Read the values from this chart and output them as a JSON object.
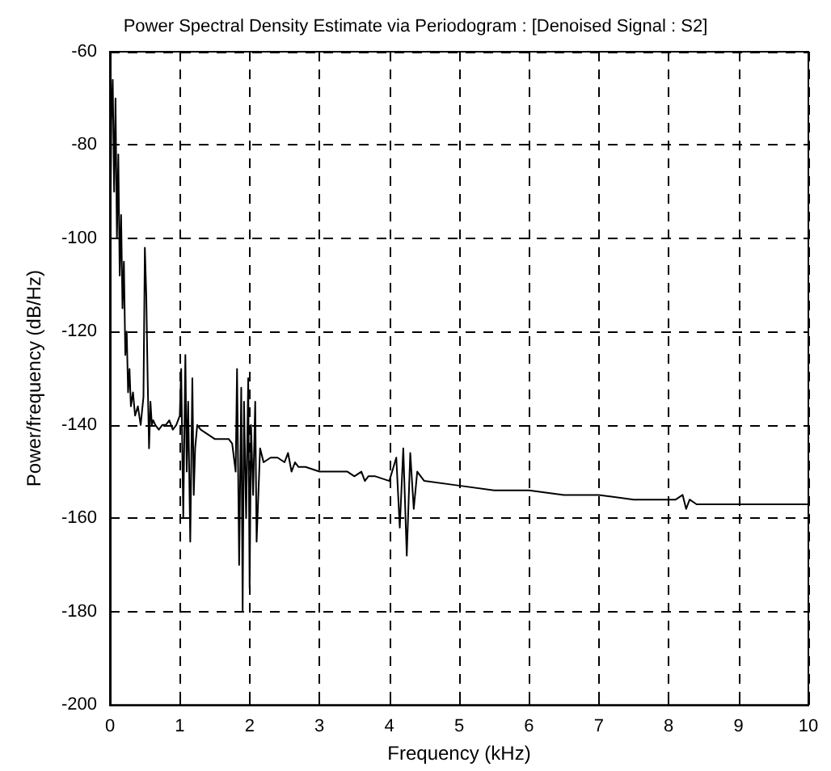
{
  "chart_data": {
    "type": "line",
    "title": "Power Spectral Density Estimate via Periodogram : [Denoised Signal : S2]",
    "xlabel": "Frequency (kHz)",
    "ylabel": "Power/frequency (dB/Hz)",
    "xlim": [
      0,
      10
    ],
    "xticks": [
      0,
      1,
      2,
      3,
      4,
      5,
      6,
      7,
      8,
      9,
      10
    ],
    "ylim": [
      -200,
      -60
    ],
    "yticks": [
      -200,
      -180,
      -160,
      -140,
      -120,
      -100,
      -80,
      -60
    ],
    "grid": true,
    "marker": "none",
    "line_style": "solid",
    "series": [
      {
        "color": "#000000",
        "x": [
          0,
          0.02,
          0.04,
          0.06,
          0.08,
          0.1,
          0.12,
          0.14,
          0.16,
          0.18,
          0.2,
          0.22,
          0.24,
          0.26,
          0.28,
          0.3,
          0.33,
          0.36,
          0.4,
          0.44,
          0.48,
          0.5,
          0.52,
          0.54,
          0.56,
          0.58,
          0.6,
          0.62,
          0.65,
          0.7,
          0.75,
          0.8,
          0.85,
          0.9,
          0.95,
          1.0,
          1.02,
          1.05,
          1.08,
          1.1,
          1.12,
          1.15,
          1.18,
          1.2,
          1.22,
          1.25,
          1.3,
          1.4,
          1.5,
          1.6,
          1.7,
          1.75,
          1.8,
          1.82,
          1.85,
          1.88,
          1.9,
          1.92,
          1.95,
          1.98,
          2.0,
          2.02,
          2.05,
          2.08,
          2.1,
          2.15,
          2.2,
          2.3,
          2.4,
          2.5,
          2.55,
          2.6,
          2.65,
          2.7,
          2.8,
          3.0,
          3.2,
          3.4,
          3.5,
          3.6,
          3.65,
          3.7,
          3.8,
          4.0,
          4.1,
          4.15,
          4.2,
          4.25,
          4.3,
          4.35,
          4.4,
          4.5,
          5.0,
          5.5,
          6.0,
          6.5,
          7.0,
          7.5,
          8.0,
          8.1,
          8.2,
          8.25,
          8.3,
          8.4,
          8.5,
          9.0,
          9.5,
          10.0
        ],
        "values": [
          -110,
          -75,
          -66,
          -90,
          -70,
          -100,
          -82,
          -108,
          -95,
          -115,
          -105,
          -125,
          -120,
          -133,
          -128,
          -136,
          -133,
          -138,
          -136,
          -140,
          -134,
          -102,
          -112,
          -130,
          -145,
          -135,
          -140,
          -139,
          -140,
          -141,
          -140,
          -140,
          -139,
          -141,
          -140,
          -138,
          -128,
          -160,
          -125,
          -150,
          -135,
          -165,
          -130,
          -155,
          -145,
          -140,
          -141,
          -142,
          -143,
          -143,
          -143,
          -144,
          -150,
          -128,
          -170,
          -132,
          -180,
          -135,
          -160,
          -130,
          -175,
          -140,
          -155,
          -135,
          -165,
          -145,
          -148,
          -147,
          -147,
          -148,
          -146,
          -150,
          -148,
          -149,
          -149,
          -150,
          -150,
          -150,
          -151,
          -150,
          -152,
          -151,
          -151,
          -152,
          -147,
          -162,
          -145,
          -168,
          -146,
          -158,
          -150,
          -152,
          -153,
          -154,
          -154,
          -155,
          -155,
          -156,
          -156,
          -156,
          -155,
          -158,
          -156,
          -157,
          -157,
          -157,
          -157,
          -157
        ]
      }
    ]
  }
}
